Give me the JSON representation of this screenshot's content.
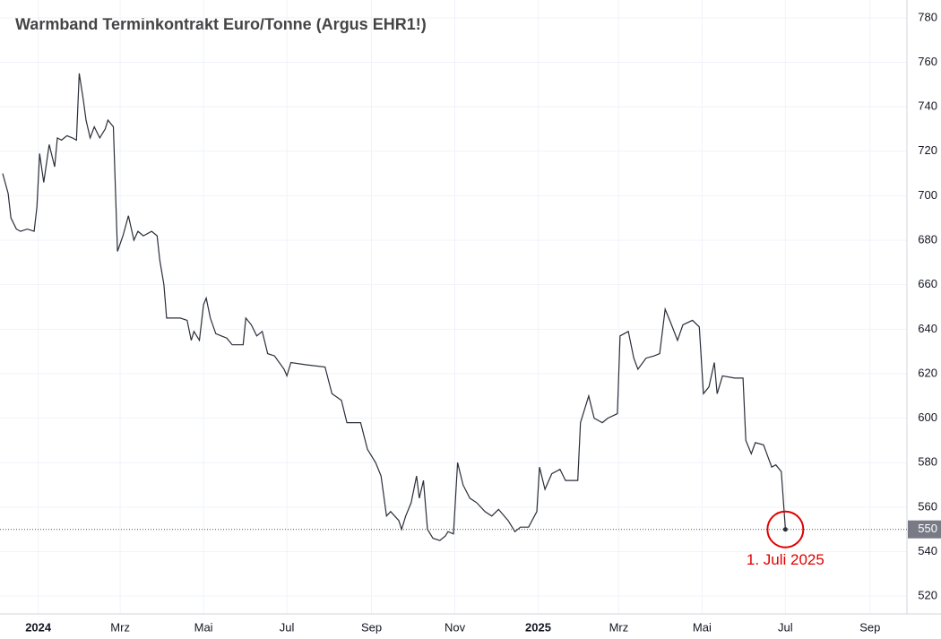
{
  "chart_data": {
    "type": "line",
    "title": "Warmband Terminkontrakt Euro/Tonne (Argus EHR1!)",
    "series": [
      {
        "name": "EHR1!",
        "color": "#2a2e39",
        "x": [
          -26,
          -22,
          -20,
          -16,
          -13,
          -8,
          -3,
          -1,
          1,
          4,
          8,
          12,
          14,
          17,
          21,
          25,
          28,
          30,
          33,
          35,
          38,
          41,
          45,
          49,
          51,
          55,
          58,
          62,
          66,
          70,
          73,
          77,
          83,
          87,
          89,
          92,
          94,
          104,
          109,
          112,
          114,
          118,
          121,
          123,
          126,
          130,
          134,
          138,
          142,
          150,
          152,
          156,
          160,
          164,
          168,
          173,
          180,
          182,
          185,
          196,
          210,
          215,
          222,
          226,
          230,
          236,
          241,
          247,
          251,
          255,
          258,
          264,
          266,
          269,
          273,
          277,
          279,
          282,
          285,
          289,
          294,
          298,
          300,
          304,
          307,
          311,
          316,
          321,
          327,
          332,
          337,
          344,
          349,
          353,
          359,
          365,
          367,
          371,
          376,
          382,
          386,
          395,
          397,
          403,
          407,
          413,
          417,
          424,
          426,
          432,
          436,
          439,
          445,
          451,
          455,
          459,
          463,
          468,
          472,
          479,
          484,
          487,
          491,
          495,
          497,
          501,
          510,
          516,
          518,
          522,
          525,
          531,
          537,
          540,
          544,
          547
        ],
        "values": [
          710,
          701,
          690,
          685,
          684,
          685,
          684,
          695,
          719,
          706,
          723,
          713,
          726,
          725,
          727,
          726,
          725,
          755,
          743,
          734,
          726,
          731,
          726,
          730,
          734,
          731,
          675,
          682,
          691,
          680,
          684,
          682,
          684,
          682,
          671,
          660,
          645,
          645,
          644,
          635,
          639,
          635,
          651,
          654,
          645,
          638,
          637,
          636,
          633,
          633,
          645,
          642,
          637,
          639,
          629,
          628,
          622,
          619,
          625,
          624,
          623,
          611,
          608,
          598,
          598,
          598,
          586,
          580,
          574,
          556,
          558,
          554,
          550,
          556,
          562,
          574,
          564,
          572,
          550,
          546,
          545,
          547,
          549,
          548,
          580,
          570,
          564,
          562,
          558,
          556,
          559,
          554,
          549,
          551,
          551,
          558,
          578,
          568,
          575,
          577,
          572,
          572,
          598,
          610,
          600,
          598,
          600,
          602,
          637,
          639,
          627,
          622,
          627,
          628,
          629,
          649,
          643,
          635,
          642,
          644,
          641,
          611,
          614,
          625,
          611,
          619,
          618,
          618,
          590,
          584,
          589,
          588,
          578,
          579,
          576,
          550
        ]
      }
    ],
    "xlim": [
      -28,
      636
    ],
    "xticks": [
      {
        "value": 0,
        "label": "2024"
      },
      {
        "value": 60,
        "label": "Mrz"
      },
      {
        "value": 121,
        "label": "Mai"
      },
      {
        "value": 182,
        "label": "Jul"
      },
      {
        "value": 244,
        "label": "Sep"
      },
      {
        "value": 305,
        "label": "Nov"
      },
      {
        "value": 366,
        "label": "2025"
      },
      {
        "value": 425,
        "label": "Mrz"
      },
      {
        "value": 486,
        "label": "Mai"
      },
      {
        "value": 547,
        "label": "Jul"
      },
      {
        "value": 609,
        "label": "Sep"
      }
    ],
    "ylim": [
      512,
      788
    ],
    "yticks": [
      520,
      540,
      560,
      580,
      600,
      620,
      640,
      660,
      680,
      700,
      720,
      740,
      760,
      780
    ],
    "grid": true,
    "last_price": 550,
    "annotation": {
      "text": "1. Juli 2025",
      "x": 547,
      "y": 550,
      "color": "#e00000"
    }
  }
}
